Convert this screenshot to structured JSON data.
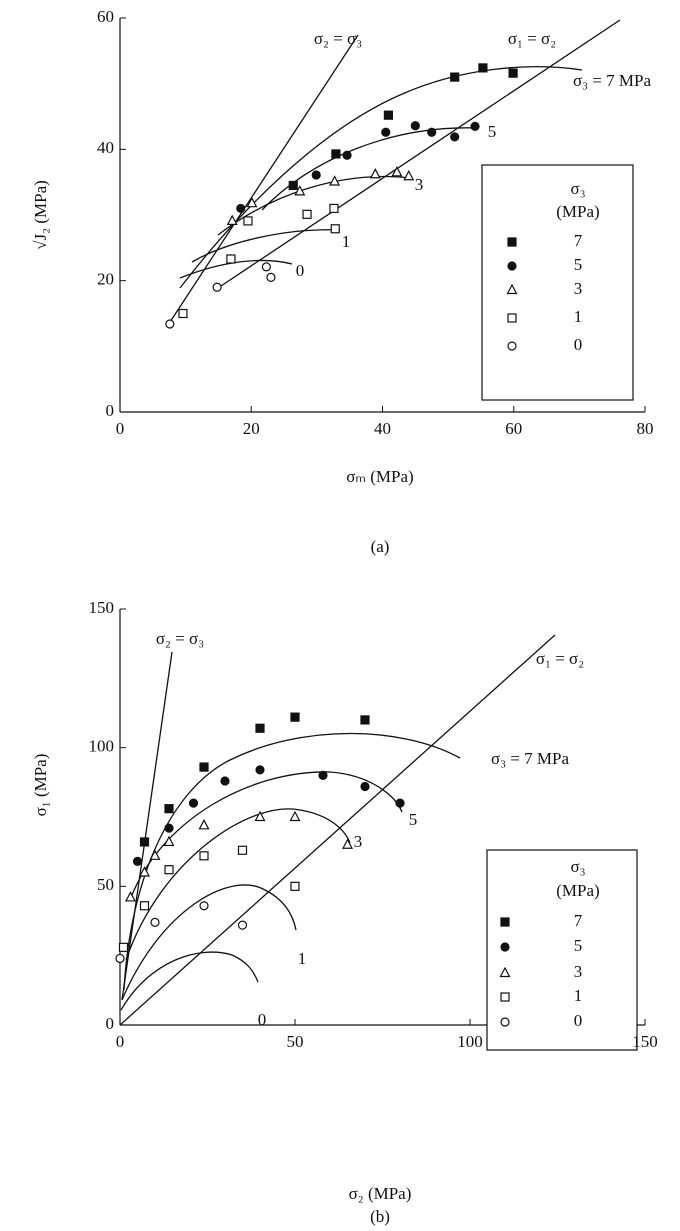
{
  "chart_data": [
    {
      "type": "scatter",
      "xlabel": "σₘ (MPa)",
      "ylabel": "√J₂ (MPa)",
      "caption": "(a)",
      "xlim": [
        0,
        80
      ],
      "xticks": [
        0,
        20,
        40,
        60,
        80
      ],
      "ylim": [
        0,
        60
      ],
      "yticks": [
        0,
        20,
        40,
        60
      ],
      "legend_title": [
        "σ₃",
        "(MPa)"
      ],
      "legend": "lower right",
      "annotations": [
        "σ₂ = σ₃",
        "σ₁ = σ₂",
        "σ₃ = 7 MPa"
      ],
      "curve_labels": [
        "5",
        "3",
        "1",
        "0"
      ],
      "series": [
        {
          "name": "7",
          "marker": "square-filled",
          "color": "#111111",
          "x": [
            26.4,
            32.9,
            40.9,
            51.0,
            55.3,
            59.9
          ],
          "values": [
            34.5,
            39.3,
            45.2,
            51.0,
            52.4,
            51.6
          ]
        },
        {
          "name": "5",
          "marker": "circle-filled",
          "color": "#111111",
          "x": [
            18.4,
            29.9,
            34.6,
            40.5,
            45.0,
            47.5,
            51.0,
            54.1
          ],
          "values": [
            31.0,
            36.1,
            39.1,
            42.6,
            43.6,
            42.6,
            41.9,
            43.5
          ]
        },
        {
          "name": "3",
          "marker": "triangle-open",
          "color": "#111111",
          "x": [
            17.1,
            20.1,
            27.4,
            32.7,
            38.9,
            42.2,
            44.0
          ],
          "values": [
            29.1,
            31.8,
            33.6,
            35.1,
            36.2,
            36.5,
            35.9
          ]
        },
        {
          "name": "1",
          "marker": "square-open",
          "color": "#111111",
          "x": [
            9.6,
            16.9,
            19.5,
            28.5,
            32.6,
            32.8
          ],
          "values": [
            15.0,
            23.3,
            29.1,
            30.1,
            31.0,
            27.9
          ]
        },
        {
          "name": "0",
          "marker": "circle-open",
          "color": "#111111",
          "x": [
            7.6,
            14.8,
            22.3,
            23.0
          ],
          "values": [
            13.4,
            19.0,
            22.1,
            20.5
          ]
        }
      ]
    },
    {
      "type": "scatter",
      "xlabel": "σ₂ (MPa)",
      "ylabel": "σ₁ (MPa)",
      "caption": "(b)",
      "xlim": [
        0,
        150
      ],
      "xticks": [
        0,
        50,
        100,
        150
      ],
      "ylim": [
        0,
        150
      ],
      "yticks": [
        0,
        50,
        100,
        150
      ],
      "legend_title": [
        "σ₃",
        "(MPa)"
      ],
      "legend": "lower right",
      "annotations": [
        "σ₂ = σ₃",
        "σ₁ = σ₂",
        "σ₃ = 7 MPa"
      ],
      "curve_labels": [
        "5",
        "3",
        "1",
        "0"
      ],
      "series": [
        {
          "name": "7",
          "marker": "square-filled",
          "color": "#111111",
          "x": [
            7.0,
            14.0,
            24.0,
            40.0,
            50.0,
            70.0
          ],
          "values": [
            66.0,
            78.0,
            93.0,
            107.0,
            111.0,
            110.0
          ]
        },
        {
          "name": "5",
          "marker": "circle-filled",
          "color": "#111111",
          "x": [
            5.0,
            14.0,
            21.0,
            30.0,
            40.0,
            58.0,
            70.0,
            80.0
          ],
          "values": [
            59.0,
            71.0,
            80.0,
            88.0,
            92.0,
            90.0,
            86.0,
            80.0
          ]
        },
        {
          "name": "3",
          "marker": "triangle-open",
          "color": "#111111",
          "x": [
            3.0,
            7.0,
            10.0,
            14.0,
            24.0,
            40.0,
            50.0,
            65.0
          ],
          "values": [
            46.0,
            55.0,
            61.0,
            66.0,
            72.0,
            75.0,
            75.0,
            65.0
          ]
        },
        {
          "name": "1",
          "marker": "square-open",
          "color": "#111111",
          "x": [
            1.0,
            7.0,
            14.0,
            24.0,
            35.0,
            50.0
          ],
          "values": [
            28.0,
            43.0,
            56.0,
            61.0,
            63.0,
            50.0
          ]
        },
        {
          "name": "0",
          "marker": "circle-open",
          "color": "#111111",
          "x": [
            0.0,
            10.0,
            24.0,
            35.0
          ],
          "values": [
            24.0,
            37.0,
            43.0,
            36.0
          ]
        }
      ]
    }
  ]
}
